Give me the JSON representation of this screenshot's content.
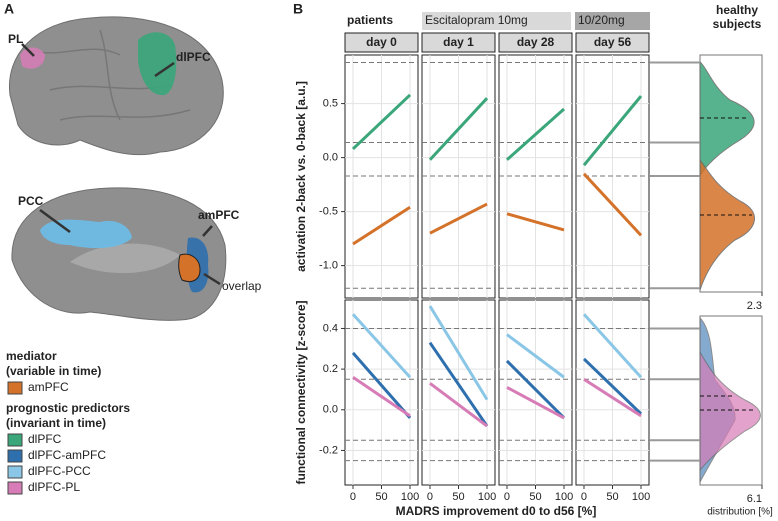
{
  "panel_a": {
    "label": "A",
    "regions": [
      "PL",
      "dlPFC",
      "PCC",
      "amPFC",
      "overlap"
    ],
    "legend": {
      "mediator_title": "mediator",
      "mediator_note": "(variable in time)",
      "mediator": [
        {
          "label": "amPFC",
          "color": "#d4722a"
        }
      ],
      "predictor_title": "prognostic predictors",
      "predictor_note": "(invariant in time)",
      "predictors": [
        {
          "label": "dlPFC",
          "color": "#3aa67a"
        },
        {
          "label": "dlPFC-amPFC",
          "color": "#2e6fae"
        },
        {
          "label": "dlPFC-PCC",
          "color": "#8ac6e6"
        },
        {
          "label": "dlPFC-PL",
          "color": "#d77cb6"
        }
      ]
    }
  },
  "panel_b_label": "B",
  "groups": [
    "patients",
    "Escitalopram 10mg",
    "10/20mg"
  ],
  "x_label": "MADRS improvement d0 to d56 [%]",
  "healthy": {
    "title": "healthy subjects",
    "x_label": "distribution [%]"
  },
  "chart_data": [
    {
      "type": "line",
      "y_label": "activation 2-back vs. 0-back [a.u.]",
      "xlim": [
        -14,
        114
      ],
      "xticks": [
        0,
        50,
        100
      ],
      "ylim": [
        -1.3,
        0.95
      ],
      "yticks": [
        0.5,
        {
          "value": 0,
          "label": "0.0"
        },
        -0.5,
        {
          "value": -1,
          "label": "-1.0"
        }
      ],
      "hlines": [
        0.88,
        0.14,
        -0.17,
        -1.21
      ],
      "dist_xlim": [
        0,
        2.3
      ],
      "dist_xticks": [
        2.3
      ],
      "facets": [
        {
          "title": "day 0",
          "x": [
            0,
            100
          ],
          "series": [
            {
              "color": "#3aa67a",
              "values": [
                0.08,
                0.58
              ]
            },
            {
              "color": "#d4722a",
              "values": [
                -0.8,
                -0.46
              ]
            }
          ]
        },
        {
          "title": "day 1",
          "x": [
            0,
            100
          ],
          "series": [
            {
              "color": "#3aa67a",
              "values": [
                -0.02,
                0.55
              ]
            },
            {
              "color": "#d4722a",
              "values": [
                -0.7,
                -0.43
              ]
            }
          ]
        },
        {
          "title": "day 28",
          "x": [
            0,
            100
          ],
          "series": [
            {
              "color": "#3aa67a",
              "values": [
                -0.02,
                0.45
              ]
            },
            {
              "color": "#d4722a",
              "values": [
                -0.52,
                -0.67
              ]
            }
          ]
        },
        {
          "title": "day 56",
          "x": [
            0,
            100
          ],
          "series": [
            {
              "color": "#3aa67a",
              "values": [
                -0.07,
                0.57
              ]
            },
            {
              "color": "#d4722a",
              "values": [
                -0.15,
                -0.72
              ]
            }
          ]
        }
      ]
    },
    {
      "type": "line",
      "y_label": "functional connectivity [z-score]",
      "xlim": [
        -14,
        114
      ],
      "xticks": [
        0,
        50,
        100
      ],
      "ylim": [
        -0.37,
        0.54
      ],
      "yticks": [
        0.4,
        0.2,
        {
          "value": 0,
          "label": "0.0"
        },
        -0.2
      ],
      "hlines": [
        0.4,
        0.15,
        -0.15,
        -0.25
      ],
      "dist_xlim": [
        0,
        6.1
      ],
      "dist_xticks": [
        6.1
      ],
      "facets": [
        {
          "x": [
            0,
            100
          ],
          "series": [
            {
              "color": "#8ac6e6",
              "values": [
                0.47,
                0.16
              ]
            },
            {
              "color": "#2e6fae",
              "values": [
                0.28,
                -0.04
              ]
            },
            {
              "color": "#d77cb6",
              "values": [
                0.16,
                -0.03
              ]
            }
          ]
        },
        {
          "x": [
            0,
            100
          ],
          "series": [
            {
              "color": "#8ac6e6",
              "values": [
                0.51,
                0.05
              ]
            },
            {
              "color": "#2e6fae",
              "values": [
                0.33,
                -0.08
              ]
            },
            {
              "color": "#d77cb6",
              "values": [
                0.13,
                -0.08
              ]
            }
          ]
        },
        {
          "x": [
            0,
            100
          ],
          "series": [
            {
              "color": "#8ac6e6",
              "values": [
                0.37,
                0.16
              ]
            },
            {
              "color": "#2e6fae",
              "values": [
                0.24,
                -0.04
              ]
            },
            {
              "color": "#d77cb6",
              "values": [
                0.11,
                -0.04
              ]
            }
          ]
        },
        {
          "x": [
            0,
            100
          ],
          "series": [
            {
              "color": "#8ac6e6",
              "values": [
                0.47,
                0.16
              ]
            },
            {
              "color": "#2e6fae",
              "values": [
                0.25,
                -0.02
              ]
            },
            {
              "color": "#d77cb6",
              "values": [
                0.15,
                -0.03
              ]
            }
          ]
        }
      ]
    }
  ]
}
